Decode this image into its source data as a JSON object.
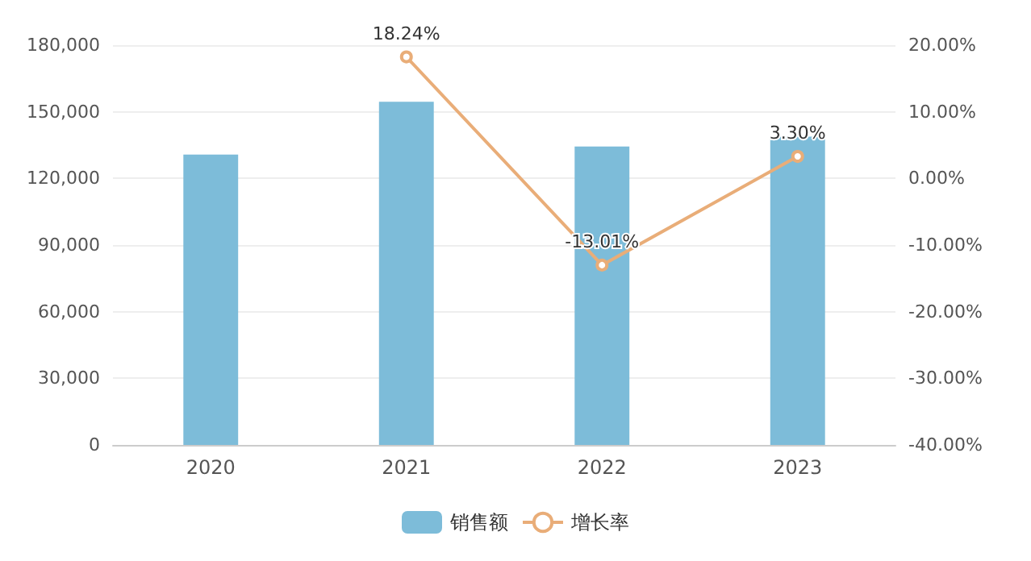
{
  "chart_data": {
    "type": "bar",
    "categories": [
      "2020",
      "2021",
      "2022",
      "2023"
    ],
    "series": [
      {
        "name": "销售额",
        "color": "#7dbcd9",
        "values": [
          130700,
          154500,
          134400,
          138800
        ]
      },
      {
        "name": "增长率",
        "type": "line",
        "axis": "y2",
        "color": "#e9ad78",
        "values": [
          null,
          18.24,
          -13.01,
          3.3
        ],
        "value_labels": [
          null,
          "18.24%",
          "-13.01%",
          "3.30%"
        ]
      }
    ],
    "ylim": [
      0,
      180000
    ],
    "yticks": [
      {
        "value": 0,
        "label": "0"
      },
      {
        "value": 30000,
        "label": "30,000"
      },
      {
        "value": 60000,
        "label": "60,000"
      },
      {
        "value": 90000,
        "label": "90,000"
      },
      {
        "value": 120000,
        "label": "120,000"
      },
      {
        "value": 150000,
        "label": "150,000"
      },
      {
        "value": 180000,
        "label": "180,000"
      }
    ],
    "y2lim": [
      -40,
      20
    ],
    "y2ticks": [
      {
        "value": -40,
        "label": "-40.00%"
      },
      {
        "value": -30,
        "label": "-30.00%"
      },
      {
        "value": -20,
        "label": "-20.00%"
      },
      {
        "value": -10,
        "label": "-10.00%"
      },
      {
        "value": 0,
        "label": "0.00%"
      },
      {
        "value": 10,
        "label": "10.00%"
      },
      {
        "value": 20,
        "label": "20.00%"
      }
    ],
    "grid": "y",
    "legend": "bottom",
    "marker": "circle",
    "line_style": "solid"
  }
}
